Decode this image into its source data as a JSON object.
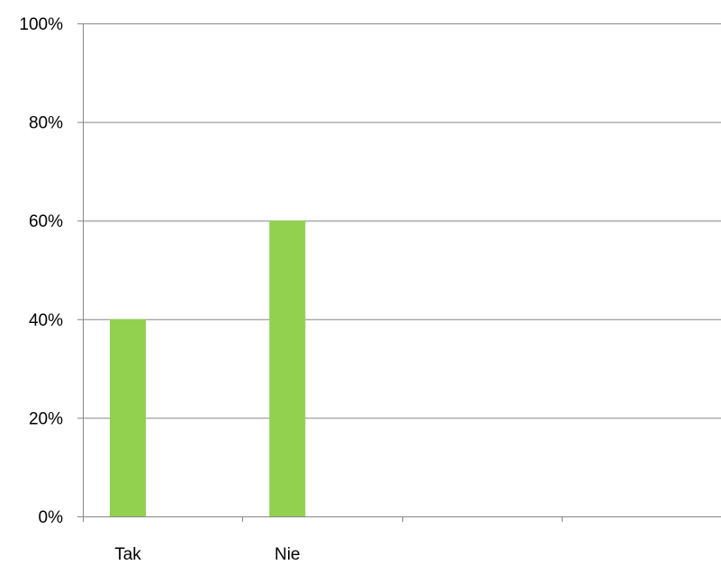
{
  "chart_data": {
    "type": "bar",
    "title": "",
    "xlabel": "",
    "ylabel": "",
    "categories": [
      "Tak",
      "Nie",
      "",
      ""
    ],
    "values": [
      40,
      60,
      null,
      null
    ],
    "ylim": [
      0,
      100
    ],
    "yticks": [
      0,
      20,
      40,
      60,
      80,
      100
    ],
    "ytick_labels": [
      "0%",
      "20%",
      "40%",
      "60%",
      "80%",
      "100%"
    ],
    "grid": true,
    "legend": "none",
    "colors": {
      "bar": "#92d050",
      "gridline": "#868686",
      "axis": "#868686",
      "text": "#000000"
    }
  }
}
